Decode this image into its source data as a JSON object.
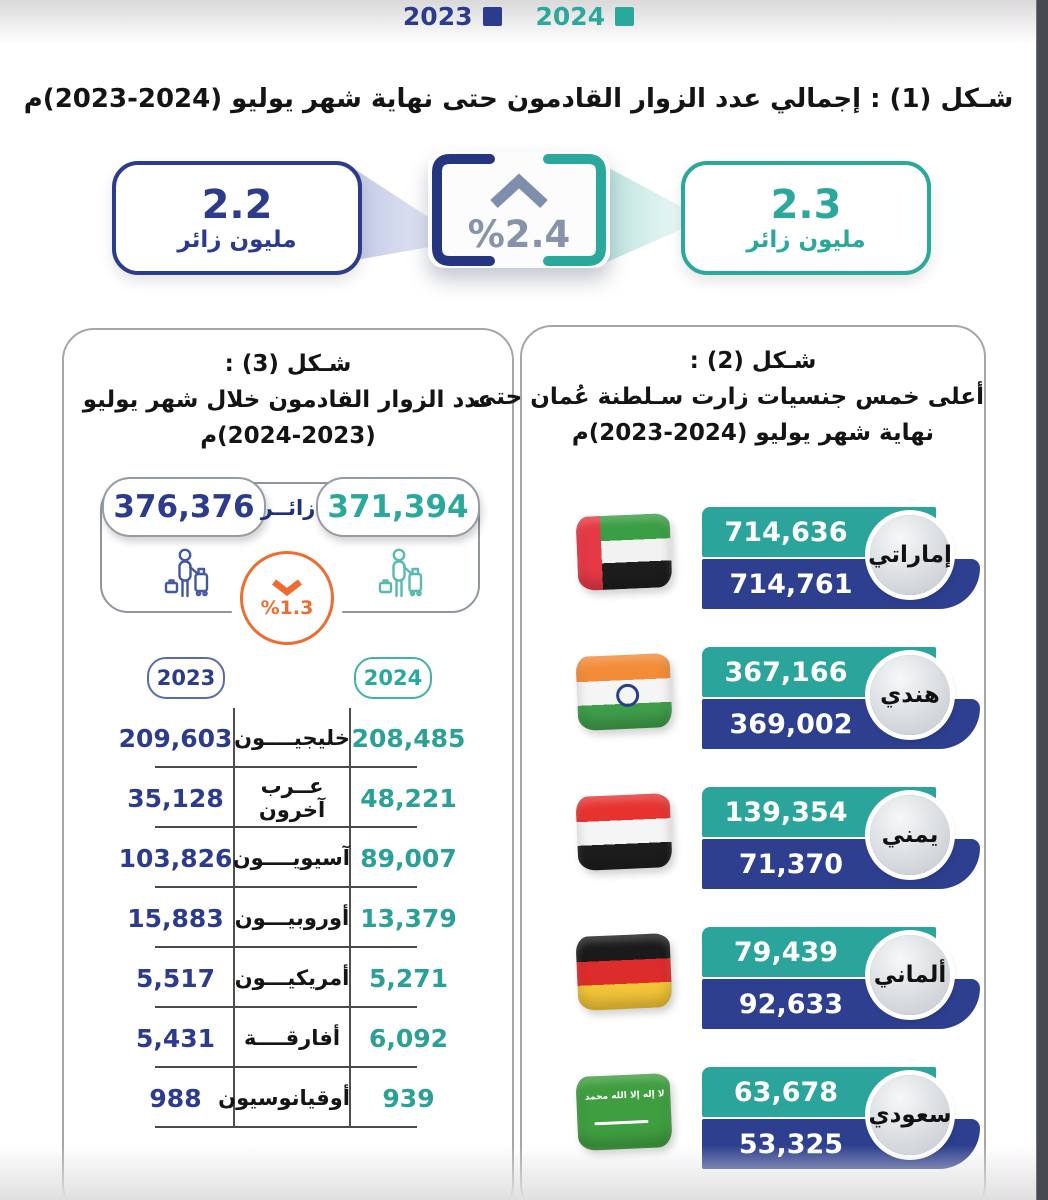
{
  "legend": {
    "items": [
      {
        "label": "2023",
        "color": "#2c3b8c"
      },
      {
        "label": "2024",
        "color": "#2aa89c"
      }
    ]
  },
  "figure1": {
    "title": "شـكل (1) : إجمالي عدد الزوار القادمون حتى نهاية شهر يوليو (2024-2023)م",
    "box2023": {
      "value": "2.2",
      "unit": "مليون زائر"
    },
    "box2024": {
      "value": "2.3",
      "unit": "مليون زائر"
    },
    "change": {
      "value": "%2.4",
      "direction": "up"
    }
  },
  "figure3": {
    "title_line1": "شـكل (3) :",
    "title_line2": "عدد الزوار القادمون خلال شهر يوليو",
    "title_line3": "(2024-2023)م",
    "total2023": "376,376",
    "total2024": "371,394",
    "unit_label": "زائــر",
    "change": {
      "value": "%1.3",
      "direction": "down"
    },
    "year2023": "2023",
    "year2024": "2024",
    "rows": [
      {
        "label": "خليجيــــون",
        "y2023": "209,603",
        "y2024": "208,485"
      },
      {
        "label": "عــرب آخرون",
        "y2023": "35,128",
        "y2024": "48,221"
      },
      {
        "label": "آسيويــــون",
        "y2023": "103,826",
        "y2024": "89,007"
      },
      {
        "label": "أوروبيـــون",
        "y2023": "15,883",
        "y2024": "13,379"
      },
      {
        "label": "أمريكيـــون",
        "y2023": "5,517",
        "y2024": "5,271"
      },
      {
        "label": "أفارقــــة",
        "y2023": "5,431",
        "y2024": "6,092"
      },
      {
        "label": "أوقيانوسيون",
        "y2023": "988",
        "y2024": "939"
      }
    ]
  },
  "figure2": {
    "title_line1": "شـكل (2) :",
    "title_line2": "أعلى خمس جنسيات زارت سـلطنة عُمان حتى",
    "title_line3": "نهاية شهر يوليو (2024-2023)م",
    "rows": [
      {
        "nationality": "إماراتي",
        "flag": "uae",
        "v2024": "714,636",
        "v2023": "714,761"
      },
      {
        "nationality": "هندي",
        "flag": "india",
        "v2024": "367,166",
        "v2023": "369,002"
      },
      {
        "nationality": "يمني",
        "flag": "yemen",
        "v2024": "139,354",
        "v2023": "71,370"
      },
      {
        "nationality": "ألماني",
        "flag": "germany",
        "v2024": "79,439",
        "v2023": "92,633"
      },
      {
        "nationality": "سعودي",
        "flag": "saudi",
        "v2024": "63,678",
        "v2023": "53,325"
      }
    ],
    "saudi_flag_script": "لا إله إلا الله محمد رسول الله"
  },
  "chart_data": [
    {
      "id": "figure-1",
      "type": "bar",
      "title": "شـكل (1) : إجمالي عدد الزوار القادمون حتى نهاية شهر يوليو (2024-2023)م",
      "categories": [
        "2023",
        "2024"
      ],
      "values": [
        2.2,
        2.3
      ],
      "unit": "مليون زائر",
      "change_percent": 2.4,
      "change_direction": "up",
      "legend_position": "top"
    },
    {
      "id": "figure-3",
      "type": "table",
      "title": "شـكل (3) : عدد الزوار القادمون خلال شهر يوليو (2024-2023)م",
      "totals": {
        "2023": 376376,
        "2024": 371394
      },
      "change_percent": 1.3,
      "change_direction": "down",
      "categories": [
        "خليجيون",
        "عرب آخرون",
        "آسيويون",
        "أوروبيون",
        "أمريكيون",
        "أفارقة",
        "أوقيانوسيون"
      ],
      "series": [
        {
          "name": "2023",
          "values": [
            209603,
            35128,
            103826,
            15883,
            5517,
            5431,
            988
          ]
        },
        {
          "name": "2024",
          "values": [
            208485,
            48221,
            89007,
            13379,
            5271,
            6092,
            939
          ]
        }
      ]
    },
    {
      "id": "figure-2",
      "type": "bar",
      "title": "شـكل (2) : أعلى خمس جنسيات زارت سـلطنة عُمان حتى نهاية شهر يوليو (2024-2023)م",
      "categories": [
        "إماراتي",
        "هندي",
        "يمني",
        "ألماني",
        "سعودي"
      ],
      "series": [
        {
          "name": "2024",
          "values": [
            714636,
            367166,
            139354,
            79439,
            63678
          ]
        },
        {
          "name": "2023",
          "values": [
            714761,
            369002,
            71370,
            92633,
            53325
          ]
        }
      ],
      "legend_position": "top"
    }
  ]
}
